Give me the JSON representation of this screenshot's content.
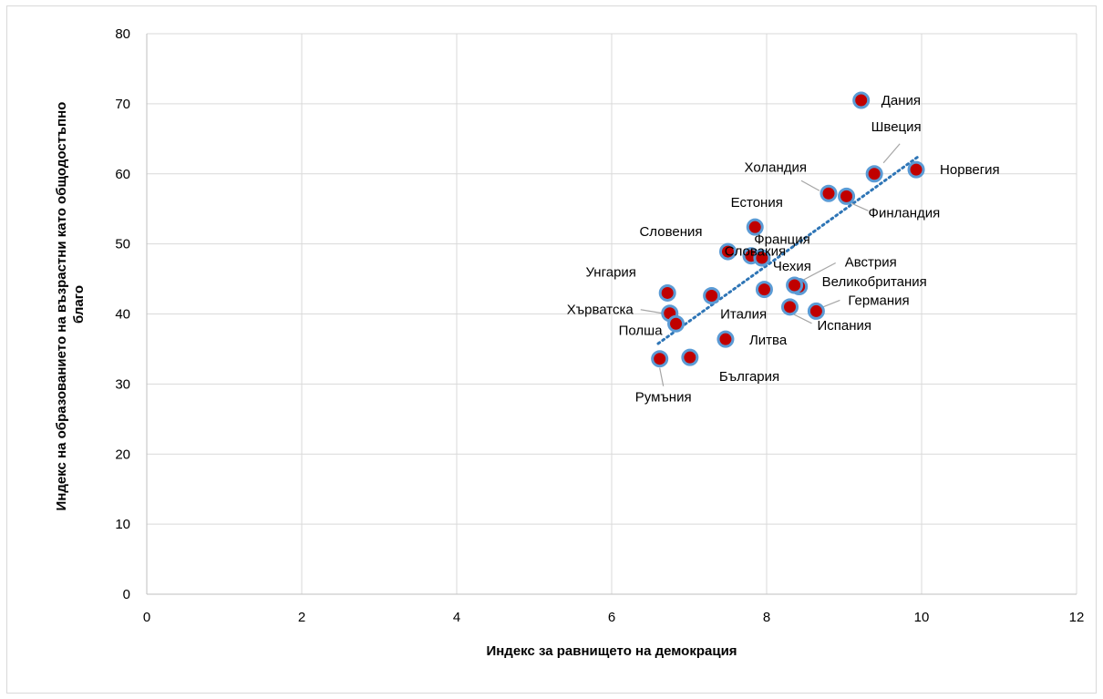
{
  "chart_data": {
    "type": "scatter",
    "title": "",
    "xlabel": "Индекс за равнището на демокрация",
    "ylabel": "Индекс на образованието на възрастни като общодостъпно благо",
    "xlim": [
      0,
      12
    ],
    "ylim": [
      0,
      80
    ],
    "x_ticks": [
      "0",
      "2",
      "4",
      "6",
      "8",
      "10",
      "12"
    ],
    "y_ticks": [
      "0",
      "10",
      "20",
      "30",
      "40",
      "50",
      "60",
      "70",
      "80"
    ],
    "grid": true,
    "legend": "none",
    "trendline": {
      "type": "linear",
      "style": "dotted",
      "x_range": [
        6.6,
        9.95
      ]
    },
    "colors": {
      "marker_fill": "#c00000",
      "marker_edge": "#5b9bd5",
      "trendline": "#2e75b6",
      "grid": "#d9d9d9",
      "leader": "#a6a6a6"
    },
    "points": [
      {
        "label": "Дания",
        "x": 9.22,
        "y": 70.5
      },
      {
        "label": "Швеция",
        "x": 9.39,
        "y": 60.0
      },
      {
        "label": "Норвегия",
        "x": 9.93,
        "y": 60.6
      },
      {
        "label": "Холандия",
        "x": 8.8,
        "y": 57.2
      },
      {
        "label": "Финландия",
        "x": 9.03,
        "y": 56.8
      },
      {
        "label": "Естония",
        "x": 7.85,
        "y": 52.4
      },
      {
        "label": "Словения",
        "x": 7.5,
        "y": 48.9
      },
      {
        "label": "Франция",
        "x": 7.8,
        "y": 48.3
      },
      {
        "label": "Чехия",
        "x": 7.94,
        "y": 48.0
      },
      {
        "label": "Австрия",
        "x": 8.42,
        "y": 43.9
      },
      {
        "label": "Великобритания",
        "x": 8.36,
        "y": 44.1
      },
      {
        "label": "Словакия",
        "x": 7.97,
        "y": 43.5
      },
      {
        "label": "Унгария",
        "x": 6.72,
        "y": 43.0
      },
      {
        "label": "Италия",
        "x": 7.29,
        "y": 42.6
      },
      {
        "label": "Германия",
        "x": 8.64,
        "y": 40.4
      },
      {
        "label": "Испания",
        "x": 8.3,
        "y": 41.0
      },
      {
        "label": "Хърватска",
        "x": 6.75,
        "y": 40.1
      },
      {
        "label": "Полша",
        "x": 6.83,
        "y": 38.6
      },
      {
        "label": "Литва",
        "x": 7.47,
        "y": 36.4
      },
      {
        "label": "България",
        "x": 7.01,
        "y": 33.8
      },
      {
        "label": "Румъния",
        "x": 6.62,
        "y": 33.6
      }
    ]
  }
}
